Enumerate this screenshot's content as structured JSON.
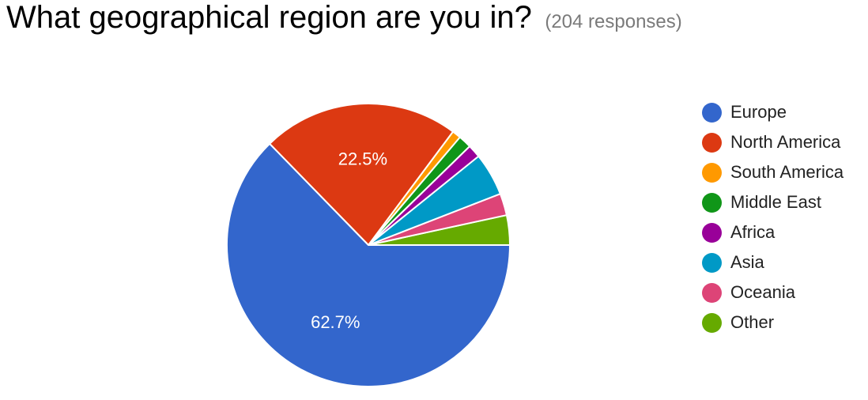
{
  "header": {
    "title": "What geographical region are you in?",
    "response_count": "(204 responses)"
  },
  "chart_data": {
    "type": "pie",
    "title": "What geographical region are you in?",
    "legend_position": "right",
    "slices": [
      {
        "label": "Europe",
        "value": 62.7,
        "color": "#3366cc",
        "display": "62.7%"
      },
      {
        "label": "North America",
        "value": 22.5,
        "color": "#dc3912",
        "display": "22.5%"
      },
      {
        "label": "South America",
        "value": 1.0,
        "color": "#ff9900",
        "display": ""
      },
      {
        "label": "Middle East",
        "value": 1.5,
        "color": "#109618",
        "display": ""
      },
      {
        "label": "Africa",
        "value": 1.5,
        "color": "#990099",
        "display": ""
      },
      {
        "label": "Asia",
        "value": 4.9,
        "color": "#0099c6",
        "display": ""
      },
      {
        "label": "Oceania",
        "value": 2.5,
        "color": "#dd4477",
        "display": ""
      },
      {
        "label": "Other",
        "value": 3.4,
        "color": "#66aa00",
        "display": ""
      }
    ]
  }
}
